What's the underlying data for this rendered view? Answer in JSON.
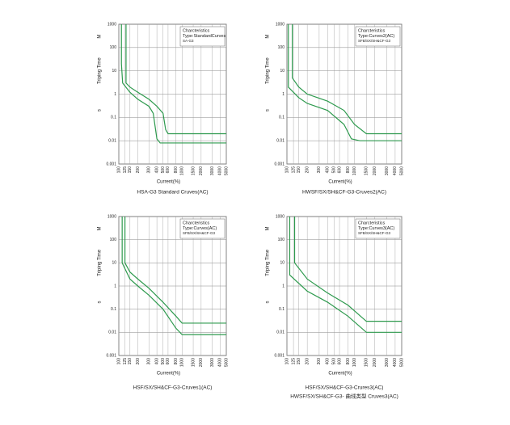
{
  "chart_data": [
    {
      "type": "line",
      "title": [
        "HSA-G3 Standard Cruves(AC)"
      ],
      "x_label": "Current(%)",
      "y_label": "Triping Time",
      "y_unit_upper": "M",
      "y_unit_lower": "s",
      "annotation": [
        "Charcteristics",
        "Type:StandardCurves",
        "SA-G3"
      ],
      "log_x": true,
      "log_y": true,
      "grid": true,
      "xlim": [
        100,
        5000
      ],
      "ylim": [
        0.001,
        1000
      ],
      "xticks": [
        100,
        125,
        150,
        200,
        300,
        400,
        500,
        600,
        800,
        1000,
        1500,
        2000,
        3000,
        4000,
        5000
      ],
      "yticks": [
        1000,
        100,
        10,
        1,
        0.1,
        0.01,
        0.001
      ],
      "series": [
        {
          "color": "#2e9a4e",
          "x": [
            110,
            110,
            115,
            150,
            200,
            300,
            350,
            400,
            450,
            5000
          ],
          "values": [
            1000,
            20,
            3,
            1.2,
            0.6,
            0.3,
            0.15,
            0.012,
            0.008,
            0.008
          ]
        },
        {
          "color": "#2e9a4e",
          "x": [
            130,
            130,
            150,
            200,
            300,
            400,
            500,
            550,
            600,
            5000
          ],
          "values": [
            1000,
            3,
            2,
            1.2,
            0.6,
            0.3,
            0.15,
            0.03,
            0.02,
            0.02
          ]
        }
      ]
    },
    {
      "type": "line",
      "title": [
        "HWSF/SX/SH&CF-G3-Cruves2(AC)"
      ],
      "x_label": "Current(%)",
      "y_label": "Triping Time",
      "y_unit_upper": "M",
      "y_unit_lower": "s",
      "annotation": [
        "Charcteristics",
        "Type:Curves2(AC)",
        "SFB/SX/SH&CF-G3"
      ],
      "log_x": true,
      "log_y": true,
      "grid": true,
      "xlim": [
        100,
        5000
      ],
      "ylim": [
        0.001,
        1000
      ],
      "xticks": [
        100,
        125,
        150,
        200,
        300,
        400,
        500,
        600,
        800,
        1000,
        1500,
        2000,
        3000,
        4000,
        5000
      ],
      "yticks": [
        1000,
        100,
        10,
        1,
        0.1,
        0.01,
        0.001
      ],
      "series": [
        {
          "color": "#2e9a4e",
          "x": [
            105,
            105,
            150,
            200,
            400,
            700,
            900,
            1200,
            5000
          ],
          "values": [
            1000,
            2,
            0.7,
            0.4,
            0.2,
            0.05,
            0.012,
            0.01,
            0.01
          ]
        },
        {
          "color": "#2e9a4e",
          "x": [
            120,
            120,
            150,
            200,
            400,
            700,
            1000,
            1500,
            5000
          ],
          "values": [
            1000,
            5,
            2,
            1,
            0.5,
            0.2,
            0.05,
            0.02,
            0.02
          ]
        }
      ]
    },
    {
      "type": "line",
      "title": [
        "HSF/SX/SH&CF-G3-Cruves1(AC)"
      ],
      "x_label": "Current(%)",
      "y_label": "Triping Time",
      "y_unit_upper": "M",
      "y_unit_lower": "s",
      "annotation": [
        "Charcteristics",
        "Type:Curves(AC)",
        "SFB/SX/SH&CF-G3"
      ],
      "log_x": true,
      "log_y": true,
      "grid": true,
      "xlim": [
        100,
        5000
      ],
      "ylim": [
        0.001,
        1000
      ],
      "xticks": [
        100,
        125,
        150,
        200,
        300,
        400,
        500,
        600,
        800,
        1000,
        1500,
        2000,
        3000,
        4000,
        5000
      ],
      "yticks": [
        1000,
        100,
        10,
        1,
        0.1,
        0.01,
        0.001
      ],
      "series": [
        {
          "color": "#2e9a4e",
          "x": [
            113,
            113,
            150,
            200,
            300,
            500,
            800,
            1000,
            5000
          ],
          "values": [
            1000,
            10,
            2,
            1,
            0.4,
            0.1,
            0.015,
            0.008,
            0.008
          ]
        },
        {
          "color": "#2e9a4e",
          "x": [
            125,
            125,
            150,
            200,
            300,
            500,
            800,
            1000,
            5000
          ],
          "values": [
            1000,
            10,
            4,
            2,
            0.8,
            0.2,
            0.05,
            0.025,
            0.025
          ]
        }
      ]
    },
    {
      "type": "line",
      "title": [
        "HSF/SX/SH&CF-G3-Crures3(AC)",
        "HWSF/SX/SH&CF-G3- 曲线类型 Cruves3(AC)"
      ],
      "x_label": "Current(%)",
      "y_label": "Triping Time",
      "y_unit_upper": "M",
      "y_unit_lower": "s",
      "annotation": [
        "Charcteristics",
        "Type:Curves3(AC)",
        "SFB/SX/SH&CF-G3"
      ],
      "log_x": true,
      "log_y": true,
      "grid": true,
      "xlim": [
        100,
        5000
      ],
      "ylim": [
        0.001,
        1000
      ],
      "xticks": [
        100,
        125,
        150,
        200,
        300,
        400,
        500,
        600,
        800,
        1000,
        1500,
        2000,
        3000,
        4000,
        5000
      ],
      "yticks": [
        1000,
        100,
        10,
        1,
        0.1,
        0.01,
        0.001
      ],
      "series": [
        {
          "color": "#2e9a4e",
          "x": [
            110,
            110,
            200,
            400,
            800,
            1500,
            5000
          ],
          "values": [
            1000,
            3,
            0.6,
            0.2,
            0.05,
            0.01,
            0.01
          ]
        },
        {
          "color": "#2e9a4e",
          "x": [
            130,
            130,
            200,
            400,
            800,
            1500,
            5000
          ],
          "values": [
            1000,
            10,
            2,
            0.5,
            0.15,
            0.03,
            0.03
          ]
        }
      ]
    }
  ]
}
